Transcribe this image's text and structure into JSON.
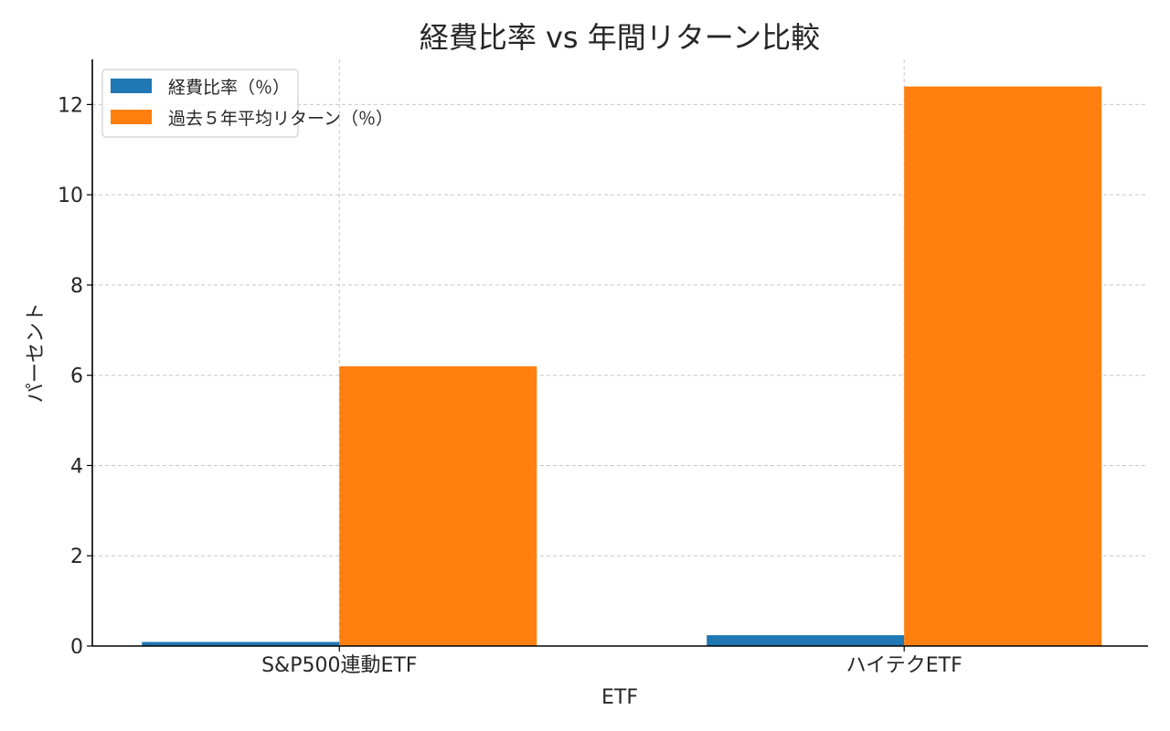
{
  "chart_data": {
    "type": "bar",
    "title": "経費比率 vs 年間リターン比較",
    "xlabel": "ETF",
    "ylabel": "パーセント",
    "categories": [
      "S&P500連動ETF",
      "ハイテクETF"
    ],
    "series": [
      {
        "name": "経費比率（％）",
        "values": [
          0.09,
          0.24
        ],
        "color": "#1f77b4"
      },
      {
        "name": "過去５年平均リターン（％）",
        "values": [
          6.2,
          12.4
        ],
        "color": "#ff7f0e"
      }
    ],
    "ylim": [
      0,
      13
    ],
    "yticks": [
      0,
      2,
      4,
      6,
      8,
      10,
      12
    ],
    "grid": true,
    "legend_position": "top-left"
  }
}
